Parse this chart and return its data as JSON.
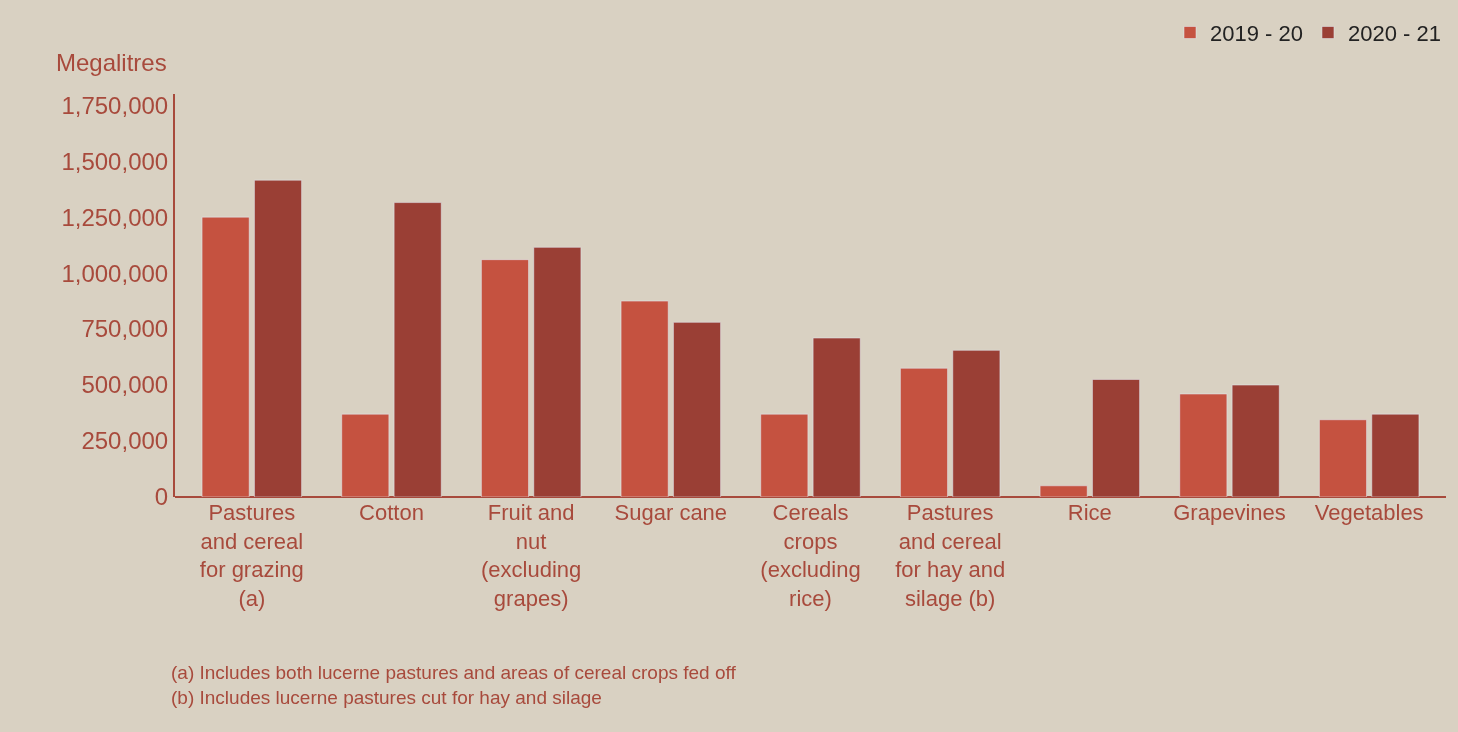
{
  "chart_data": {
    "type": "bar",
    "ylabel": "Megalitres",
    "categories": [
      "Pastures and cereal for grazing (a)",
      "Cotton",
      "Fruit and nut (excluding grapes)",
      "Sugar cane",
      "Cereals crops (excluding rice)",
      "Pastures and cereal for hay and silage (b)",
      "Rice",
      "Grapevines",
      "Vegetables"
    ],
    "series": [
      {
        "name": "2019 - 20",
        "color": "#c55240",
        "values": [
          1250000,
          370000,
          1060000,
          875000,
          370000,
          575000,
          50000,
          460000,
          345000
        ]
      },
      {
        "name": "2020 - 21",
        "color": "#9a3f35",
        "values": [
          1415000,
          1315000,
          1115000,
          780000,
          710000,
          655000,
          525000,
          500000,
          370000
        ]
      }
    ],
    "ylim": [
      0,
      1800000
    ],
    "yticks": [
      {
        "value": 0,
        "label": "0"
      },
      {
        "value": 250000,
        "label": "250,000"
      },
      {
        "value": 500000,
        "label": "500,000"
      },
      {
        "value": 750000,
        "label": "750,000"
      },
      {
        "value": 1000000,
        "label": "1,000,000"
      },
      {
        "value": 1250000,
        "label": "1,250,000"
      },
      {
        "value": 1500000,
        "label": "1,500,000"
      },
      {
        "value": 1750000,
        "label": "1,750,000"
      }
    ],
    "grid": false,
    "legend": "top right",
    "annotations": [
      "(a) Includes both lucerne pastures and areas of cereal crops fed off",
      "(b) Includes lucerne pastures cut for hay and silage"
    ]
  }
}
